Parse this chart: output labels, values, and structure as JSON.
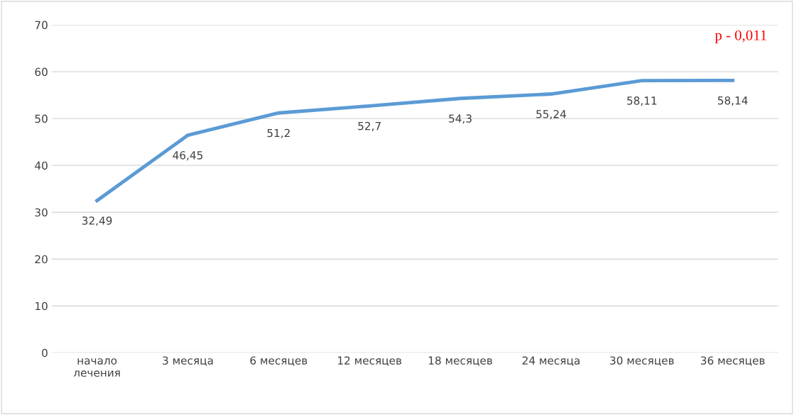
{
  "chart_data": {
    "type": "line",
    "categories": [
      "начало\nлечения",
      "3 месяца",
      "6 месяцев",
      "12 месяцев",
      "18 месяцев",
      "24 месяца",
      "30 месяцев",
      "36 месяцев"
    ],
    "series": [
      {
        "color": "#5b9bd5",
        "values": [
          32.49,
          46.45,
          51.2,
          52.7,
          54.3,
          55.24,
          58.11,
          58.14
        ],
        "value_labels": [
          "32,49",
          "46,45",
          "51,2",
          "52,7",
          "54,3",
          "55,24",
          "58,11",
          "58,14"
        ]
      }
    ],
    "ylim": [
      0,
      70
    ],
    "yticks": [
      0,
      10,
      20,
      30,
      40,
      50,
      60,
      70
    ],
    "grid": "y",
    "marker": "none",
    "line_style": "solid",
    "annotations": [
      "p - 0,011"
    ]
  }
}
